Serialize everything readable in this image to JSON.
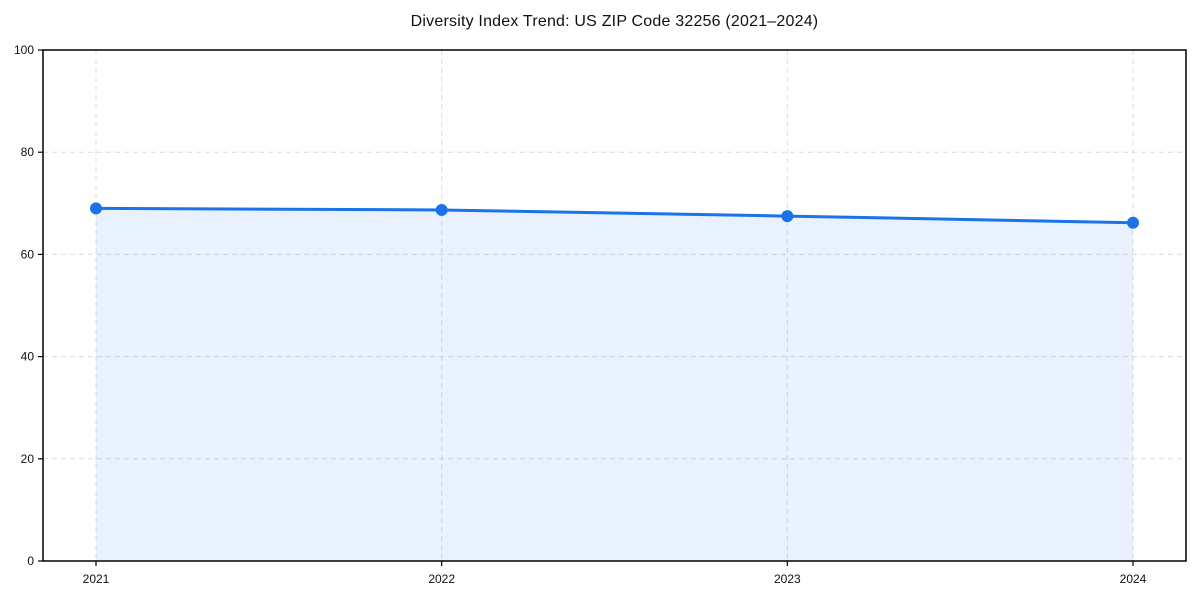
{
  "chart_data": {
    "type": "line",
    "title": "Diversity Index Trend: US ZIP Code 32256 (2021–2024)",
    "categories": [
      "2021",
      "2022",
      "2023",
      "2024"
    ],
    "values": [
      69,
      68.7,
      67.5,
      66.2
    ],
    "ylim": [
      0,
      100
    ],
    "yticks": [
      0,
      20,
      40,
      60,
      80,
      100
    ],
    "xlabel": "",
    "ylabel": "",
    "grid": true,
    "grid_style": "dashed",
    "legend_position": "none",
    "area_fill": true,
    "marker": "circle",
    "colors": {
      "line": "#1a73e8",
      "area": "rgba(26, 115, 232, 0.10)",
      "grid": "#dcdcdc",
      "spine": "#000000",
      "text": "#111111"
    }
  }
}
